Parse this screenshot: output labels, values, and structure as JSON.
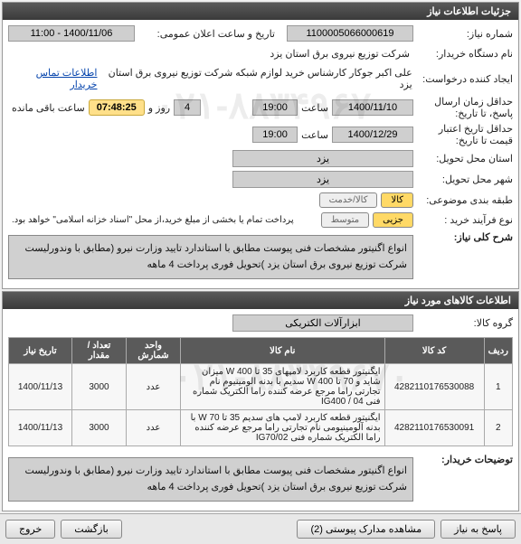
{
  "panel1": {
    "title": "جزئیات اطلاعات نیاز"
  },
  "form": {
    "need_no_label": "شماره نیاز:",
    "need_no": "1100005066000619",
    "announce_label": "تاریخ و ساعت اعلان عمومی:",
    "announce_value": "1400/11/06 - 11:00",
    "buyer_label": "نام دستگاه خریدار:",
    "buyer_value": "شرکت توزیع نیروی برق استان یزد",
    "requester_label": "ایجاد کننده درخواست:",
    "requester_value": "علی اکبر جوکار  کارشناس خرید لوازم شبکه  شرکت توزیع نیروی برق استان یزد",
    "contact_link": "اطلاعات تماس خریدار",
    "deadline_label": "حداقل زمان ارسال پاسخ، تا تاریخ:",
    "deadline_date": "1400/11/10",
    "deadline_time_lbl": "ساعت",
    "deadline_time": "19:00",
    "remain_day_val": "4",
    "remain_day_lbl": "روز و",
    "countdown": "07:48:25",
    "remain_suffix": "ساعت باقی مانده",
    "validity_label": "حداقل تاریخ اعتبار قیمت تا تاریخ:",
    "validity_date": "1400/12/29",
    "validity_time": "19:00",
    "province_label": "استان محل تحویل:",
    "province_value": "یزد",
    "city_label": "شهر محل تحویل:",
    "city_value": "یزد",
    "classification_label": "طبقه بندی موضوعی:",
    "class_goods": "کالا",
    "class_service": "کالا/خدمت",
    "buy_type_label": "نوع فرآیند خرید :",
    "buy_part": "جزیی",
    "buy_mid": "متوسط",
    "pay_note": "پرداخت تمام یا بخشی از مبلغ خرید،از محل \"اسناد خزانه اسلامی\" خواهد بود."
  },
  "desc": {
    "label": "شرح کلی نیاز:",
    "text": "انواع اگنیتور مشخصات فنی پیوست مطابق با استاندارد تایید وزارت نیرو (مطابق با وندورلیست شرکت توزیع نیروی برق استان یزد )تحویل فوری پرداخت 4 ماهه"
  },
  "panel2": {
    "title": "اطلاعات کالاهای مورد نیاز"
  },
  "goods": {
    "group_label": "گروه کالا:",
    "group_value": "ابزارآلات الکتریکی",
    "columns": {
      "row": "ردیف",
      "code": "کد کالا",
      "name": "نام کالا",
      "unit": "واحد شمارش",
      "qty": "تعداد / مقدار",
      "date": "تاریخ نیاز"
    },
    "rows": [
      {
        "idx": "1",
        "code": "4282110176530088",
        "name": "ایگنیتور قطعه کاربرد لامپهای 35 تا W 400 میزان شاید و 70 تا W 400 سدیم با بدنه الومینیوم نام تجارتی راما مرجع عرضه کننده راما الکتریک شماره فنی IG400 / 04",
        "unit": "عدد",
        "qty": "3000",
        "date": "1400/11/13"
      },
      {
        "idx": "2",
        "code": "4282110176530091",
        "name": "ایگنیتور قطعه کاربرد لامپ های سدیم 35 تا 70 W با بدنه آلومینیومی نام تجارتی راما مرجع عرضه کننده راما الکتریک شماره فنی IG70/02",
        "unit": "عدد",
        "qty": "3000",
        "date": "1400/11/13"
      }
    ]
  },
  "remarks": {
    "label": "توضیحات خریدار:",
    "text": "انواع اگنیتور مشخصات فنی پیوست مطابق با استاندارد تایید وزارت نیرو (مطابق با وندورلیست شرکت توزیع نیروی برق استان یزد )تحویل فوری پرداخت 4 ماهه"
  },
  "buttons": {
    "reply": "پاسخ به نیاز",
    "attach": "مشاهده مدارک پیوستی (2)",
    "back": "بازگشت",
    "exit": "خروج"
  },
  "watermark": "۰۲۱-۸۸۳۴۹۶۷۰"
}
